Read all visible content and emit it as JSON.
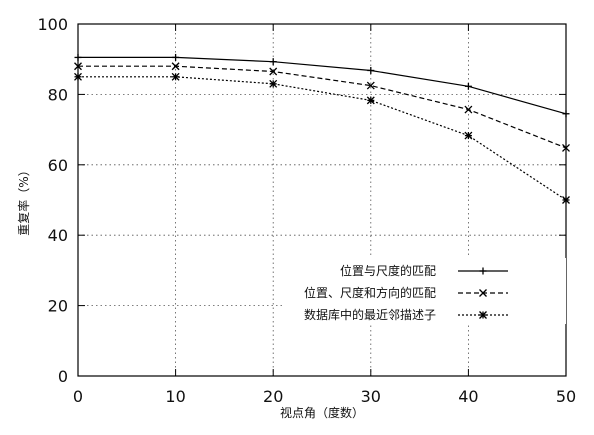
{
  "chart_data": {
    "type": "line",
    "x": [
      0,
      10,
      20,
      30,
      40,
      50
    ],
    "xlim": [
      0,
      50
    ],
    "ylim": [
      0,
      100
    ],
    "xticks": [
      0,
      10,
      20,
      30,
      40,
      50
    ],
    "yticks": [
      0,
      20,
      40,
      60,
      80,
      100
    ],
    "xlabel": "视点角（度数）",
    "ylabel": "重复率（%）",
    "grid": true,
    "legend_position": "bottom-right",
    "series": [
      {
        "name": "位置与尺度的匹配",
        "values": [
          90.5,
          90.5,
          89.3,
          86.8,
          82.3,
          74.5
        ],
        "style": "solid",
        "marker": "plus"
      },
      {
        "name": "位置、尺度和方向的匹配",
        "values": [
          88,
          88,
          86.5,
          82.5,
          75.7,
          64.8
        ],
        "style": "dashed",
        "marker": "x"
      },
      {
        "name": "数据库中的最近邻描述子",
        "values": [
          85,
          85,
          83,
          78.3,
          68.3,
          50
        ],
        "style": "dotted",
        "marker": "star"
      }
    ]
  }
}
